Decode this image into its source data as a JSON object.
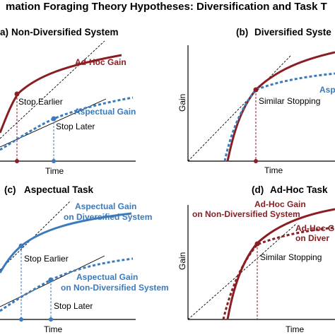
{
  "title": "mation Foraging Theory Hypotheses: Diversification and Task T",
  "colors": {
    "red": "#8b1e23",
    "blue": "#3a7abd",
    "black": "#000000"
  },
  "panels": {
    "a": {
      "label": "Non-Diversified System",
      "marker": "a)",
      "xlabel": "Time",
      "ylabel": "",
      "gain_red": "Ad-Hoc Gain",
      "gain_blue": "Aspectual Gain",
      "stop_red": "Stop Earlier",
      "stop_blue": "Stop Later"
    },
    "b": {
      "label": "Diversified Syste",
      "marker": "(b)",
      "xlabel": "Time",
      "ylabel": "Gain",
      "gain_red": "",
      "gain_blue": "Asp",
      "stop_text": "Similar Stopping"
    },
    "c": {
      "label": "Aspectual Task",
      "marker": "(c)",
      "xlabel": "Time",
      "ylabel": "",
      "gain_solid_l1": "Aspectual Gain",
      "gain_solid_l2": "on Diversified System",
      "gain_dotted_l1": "Aspectual Gain",
      "gain_dotted_l2": "on Non-Diversified System",
      "stop_early": "Stop Earlier",
      "stop_late": "Stop Later"
    },
    "d": {
      "label": "Ad-Hoc Task",
      "marker": "(d)",
      "xlabel": "Time",
      "ylabel": "Gain",
      "gain_solid_l1": "Ad-Hoc Gain",
      "gain_solid_l2": "on Non-Diversified System",
      "gain_dotted_l1": "Ad-Hoc G",
      "gain_dotted_l2": "on Diver",
      "stop_text": "Similar Stopping"
    }
  }
}
